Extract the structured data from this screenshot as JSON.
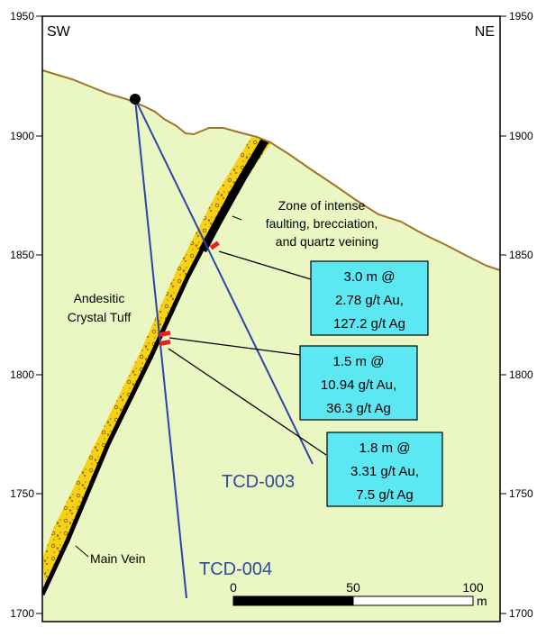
{
  "section": {
    "elevation_ticks": [
      "1950",
      "1900",
      "1850",
      "1800",
      "1750",
      "1700"
    ],
    "direction_left": "SW",
    "direction_right": "NE",
    "lithology_label": [
      "Andesitic",
      "Crystal Tuff"
    ],
    "zone_label": [
      "Zone of intense",
      "faulting, brecciation,",
      "and quartz veining"
    ],
    "vein_label": "Main Vein",
    "drillholes": [
      {
        "name": "TCD-003"
      },
      {
        "name": "TCD-004"
      }
    ],
    "intercepts": [
      {
        "lines": [
          "3.0 m @",
          "2.78 g/t Au,",
          "127.2 g/t Ag"
        ]
      },
      {
        "lines": [
          "1.5 m @",
          "10.94 g/t Au,",
          "36.3 g/t Ag"
        ]
      },
      {
        "lines": [
          "1.8 m @",
          "3.31 g/t Au,",
          "7.5 g/t Ag"
        ]
      }
    ],
    "scale_bar": {
      "labels": [
        "0",
        "50",
        "100"
      ],
      "unit": "m"
    },
    "colors": {
      "background": "#ebf7c3",
      "topography": "#a0752a",
      "breccia_zone": "#f7d117",
      "vein": "#000000",
      "drillhole": "#2a44a8",
      "intercept": "#e8211c",
      "callout_box": "#5ce8f2"
    }
  }
}
